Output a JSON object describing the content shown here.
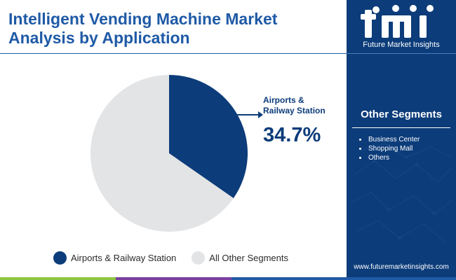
{
  "header": {
    "title_line1": "Intelligent Vending Machine Market",
    "title_line2": "Analysis by Application"
  },
  "brand": {
    "logo_text": "Future Market Insights",
    "url": "www.futuremarketinsights.com"
  },
  "other_segments": {
    "title": "Other Segments",
    "items": [
      "Business Center",
      "Shopping Mall",
      "Others"
    ]
  },
  "callout": {
    "label_line1": "Airports &",
    "label_line2": "Railway Station",
    "value": "34.7%"
  },
  "colors": {
    "primary": "#0c3c7a",
    "title": "#1f5aa6",
    "other": "#e3e4e6",
    "bar_green": "#8cc63f",
    "bar_purple": "#7b3fa0",
    "bar_blue": "#1f5aa6"
  },
  "chart_data": {
    "type": "pie",
    "series": [
      {
        "name": "Airports & Railway Station",
        "value": 34.7,
        "color": "#0c3c7a"
      },
      {
        "name": "All Other Segments",
        "value": 65.3,
        "color": "#e3e4e6"
      }
    ],
    "legend_position": "bottom",
    "start_angle": "12 o'clock",
    "direction": "clockwise"
  }
}
